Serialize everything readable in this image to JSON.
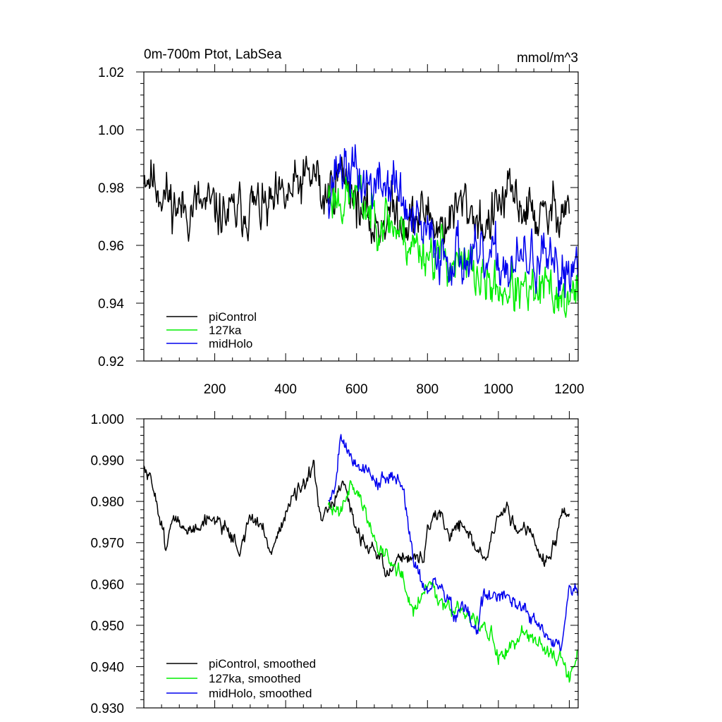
{
  "chart_data": [
    {
      "type": "line",
      "title_left": "0m-700m Ptot, LabSea",
      "title_right": "mmol/m^3",
      "xlabel": "",
      "ylabel": "",
      "xlim": [
        0,
        1225
      ],
      "ylim": [
        0.92,
        1.02
      ],
      "x_ticks": [
        200,
        400,
        600,
        800,
        1000,
        1200
      ],
      "x_tick_labels": [
        "200",
        "400",
        "600",
        "800",
        "1000",
        "1200"
      ],
      "y_ticks": [
        0.92,
        0.94,
        0.96,
        0.98,
        1.0,
        1.02
      ],
      "y_tick_labels": [
        "0.92",
        "0.94",
        "0.96",
        "0.98",
        "1.00",
        "1.02"
      ],
      "grid": false,
      "legend_position": "bottom-left",
      "series": [
        {
          "name": "piControl",
          "color": "#000000",
          "x_start": 0,
          "x_end": 1200,
          "step": 2,
          "anchors_x": [
            0,
            20,
            50,
            80,
            110,
            150,
            200,
            250,
            300,
            350,
            400,
            450,
            490,
            500,
            520,
            550,
            580,
            600,
            620,
            650,
            680,
            700,
            730,
            760,
            800,
            830,
            870,
            900,
            930,
            970,
            1000,
            1040,
            1080,
            1100,
            1130,
            1160,
            1200
          ],
          "anchors_y": [
            0.986,
            0.984,
            0.979,
            0.975,
            0.972,
            0.974,
            0.972,
            0.97,
            0.974,
            0.972,
            0.976,
            0.982,
            0.985,
            0.975,
            0.978,
            0.985,
            0.983,
            0.976,
            0.97,
            0.966,
            0.97,
            0.972,
            0.97,
            0.968,
            0.972,
            0.966,
            0.97,
            0.975,
            0.971,
            0.966,
            0.974,
            0.977,
            0.972,
            0.971,
            0.968,
            0.973,
            0.975
          ],
          "noise": 0.0085,
          "seed": 11
        },
        {
          "name": "127ka",
          "color": "#00ee00",
          "x_start": 520,
          "x_end": 1225,
          "step": 2,
          "anchors_x": [
            520,
            560,
            600,
            640,
            680,
            720,
            760,
            800,
            840,
            880,
            920,
            960,
            1000,
            1040,
            1080,
            1120,
            1160,
            1200,
            1225
          ],
          "anchors_y": [
            0.978,
            0.976,
            0.978,
            0.971,
            0.97,
            0.965,
            0.96,
            0.958,
            0.957,
            0.953,
            0.952,
            0.947,
            0.945,
            0.945,
            0.942,
            0.944,
            0.944,
            0.94,
            0.944
          ],
          "noise": 0.008,
          "seed": 23
        },
        {
          "name": "midHolo",
          "color": "#0000ee",
          "x_start": 520,
          "x_end": 1225,
          "step": 2,
          "anchors_x": [
            520,
            550,
            580,
            620,
            660,
            700,
            720,
            760,
            800,
            840,
            880,
            920,
            960,
            1000,
            1040,
            1080,
            1120,
            1160,
            1200,
            1225
          ],
          "anchors_y": [
            0.98,
            0.988,
            0.986,
            0.982,
            0.98,
            0.982,
            0.978,
            0.966,
            0.963,
            0.957,
            0.958,
            0.954,
            0.953,
            0.955,
            0.952,
            0.955,
            0.955,
            0.949,
            0.953,
            0.956
          ],
          "noise": 0.009,
          "seed": 37
        }
      ]
    },
    {
      "type": "line",
      "xlabel": "",
      "ylabel": "",
      "xlim": [
        0,
        1225
      ],
      "ylim": [
        0.93,
        1.0
      ],
      "x_ticks": [
        200,
        400,
        600,
        800,
        1000,
        1200
      ],
      "y_ticks": [
        0.93,
        0.94,
        0.95,
        0.96,
        0.97,
        0.98,
        0.99,
        1.0
      ],
      "y_tick_labels": [
        "0.930",
        "0.940",
        "0.950",
        "0.960",
        "0.970",
        "0.980",
        "0.990",
        "1.000"
      ],
      "grid": false,
      "legend_position": "bottom-left",
      "series": [
        {
          "name": "piControl, smoothed",
          "color": "#000000",
          "x_start": 0,
          "x_end": 1200,
          "step": 2,
          "anchors_x": [
            0,
            10,
            30,
            60,
            90,
            120,
            160,
            200,
            240,
            270,
            300,
            330,
            360,
            390,
            420,
            450,
            480,
            500,
            520,
            560,
            600,
            640,
            660,
            690,
            720,
            760,
            790,
            800,
            830,
            860,
            900,
            940,
            970,
            990,
            1020,
            1060,
            1090,
            1120,
            1150,
            1180,
            1200
          ],
          "anchors_y": [
            0.988,
            0.986,
            0.983,
            0.97,
            0.976,
            0.972,
            0.975,
            0.976,
            0.973,
            0.968,
            0.976,
            0.974,
            0.968,
            0.975,
            0.981,
            0.983,
            0.988,
            0.974,
            0.978,
            0.984,
            0.973,
            0.969,
            0.967,
            0.962,
            0.967,
            0.966,
            0.966,
            0.974,
            0.977,
            0.972,
            0.975,
            0.968,
            0.966,
            0.975,
            0.978,
            0.973,
            0.974,
            0.966,
            0.966,
            0.977,
            0.976
          ],
          "noise": 0.0018,
          "seed": 51
        },
        {
          "name": "127ka, smoothed",
          "color": "#00ee00",
          "x_start": 520,
          "x_end": 1225,
          "step": 2,
          "anchors_x": [
            520,
            550,
            580,
            600,
            620,
            660,
            700,
            740,
            760,
            800,
            830,
            860,
            900,
            940,
            980,
            1000,
            1040,
            1080,
            1120,
            1150,
            1180,
            1200,
            1225
          ],
          "anchors_y": [
            0.978,
            0.978,
            0.984,
            0.983,
            0.978,
            0.969,
            0.966,
            0.961,
            0.953,
            0.961,
            0.957,
            0.955,
            0.953,
            0.951,
            0.948,
            0.941,
            0.945,
            0.949,
            0.946,
            0.942,
            0.942,
            0.937,
            0.944
          ],
          "noise": 0.0019,
          "seed": 63
        },
        {
          "name": "midHolo, smoothed",
          "color": "#0000ee",
          "x_start": 520,
          "x_end": 1225,
          "step": 2,
          "anchors_x": [
            520,
            540,
            555,
            580,
            620,
            660,
            700,
            720,
            740,
            760,
            800,
            820,
            860,
            880,
            900,
            940,
            960,
            1000,
            1040,
            1060,
            1100,
            1140,
            1160,
            1180,
            1200,
            1225
          ],
          "anchors_y": [
            0.98,
            0.984,
            0.997,
            0.991,
            0.988,
            0.985,
            0.985,
            0.987,
            0.979,
            0.966,
            0.958,
            0.96,
            0.957,
            0.951,
            0.955,
            0.948,
            0.958,
            0.956,
            0.957,
            0.955,
            0.951,
            0.947,
            0.945,
            0.946,
            0.959,
            0.957
          ],
          "noise": 0.0019,
          "seed": 79
        }
      ]
    }
  ]
}
